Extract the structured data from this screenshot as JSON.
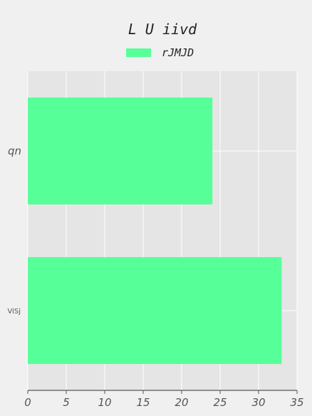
{
  "chart_data": {
    "type": "bar",
    "orientation": "horizontal",
    "title": "L U iivd",
    "categories": [
      "qn",
      "ViSj"
    ],
    "series": [
      {
        "name": "rJMJD",
        "values": [
          24,
          33
        ],
        "color": "#57ff99"
      }
    ],
    "xlim": [
      0,
      35
    ],
    "xticks": [
      0,
      5,
      10,
      15,
      20,
      25,
      30,
      35
    ],
    "grid": true,
    "legend_position": "top-center",
    "background_color": "#f0f0f0",
    "plot_background_color": "#e5e5e5",
    "grid_color": "#ffffff"
  }
}
